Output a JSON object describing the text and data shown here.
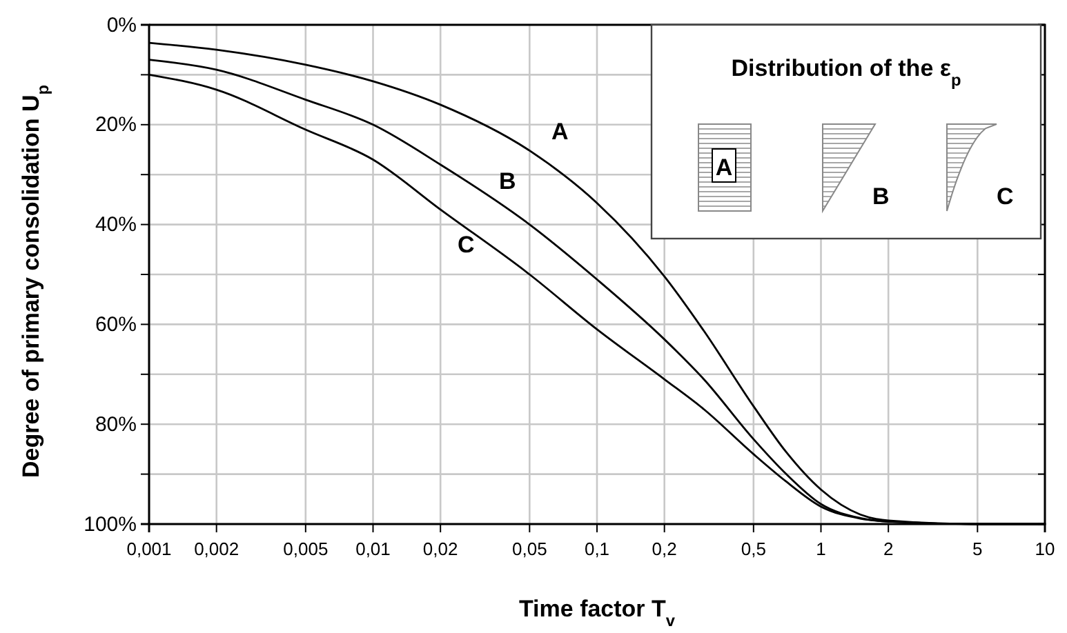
{
  "chart_data": {
    "type": "line",
    "xlabel": "Time factor T$_{v}$",
    "ylabel": "Degree of primary consolidation U$_{p}$",
    "legend_title": "Distribution of the ε$_{p}$",
    "annotations": [
      "A",
      "B",
      "C"
    ],
    "log": "x",
    "grid": true,
    "marker": "none",
    "line_style": "solid",
    "x": [
      0.001,
      0.002,
      0.005,
      0.01,
      0.02,
      0.05,
      0.1,
      0.2,
      0.3,
      0.5,
      0.7,
      1,
      1.5,
      2,
      5,
      10
    ],
    "series": [
      {
        "name": "A",
        "color": "#000000",
        "values": [
          3.6,
          5.0,
          8.0,
          11.3,
          16.0,
          25.2,
          35.7,
          50.4,
          61.3,
          76.4,
          85.6,
          93.1,
          98.1,
          99.3,
          100,
          100
        ]
      },
      {
        "name": "B",
        "color": "#000000",
        "values": [
          7,
          9,
          15,
          20,
          28,
          40,
          51,
          63,
          71,
          83,
          90,
          96,
          98.8,
          99.5,
          100,
          100
        ]
      },
      {
        "name": "C",
        "color": "#000000",
        "values": [
          10,
          13,
          21,
          27,
          37,
          50,
          61,
          71,
          77,
          86,
          91.5,
          96.5,
          98.9,
          99.5,
          100,
          100
        ]
      }
    ],
    "xlim": [
      0.001,
      10
    ],
    "xticks": [
      {
        "value": 0.001,
        "label": "0,001"
      },
      {
        "value": 0.002,
        "label": "0,002"
      },
      {
        "value": 0.005,
        "label": "0,005"
      },
      {
        "value": 0.01,
        "label": "0,01"
      },
      {
        "value": 0.02,
        "label": "0,02"
      },
      {
        "value": 0.05,
        "label": "0,05"
      },
      {
        "value": 0.1,
        "label": "0,1"
      },
      {
        "value": 0.2,
        "label": "0,2"
      },
      {
        "value": 0.5,
        "label": "0,5"
      },
      {
        "value": 1,
        "label": "1"
      },
      {
        "value": 2,
        "label": "2"
      },
      {
        "value": 5,
        "label": "5"
      },
      {
        "value": 10,
        "label": "10"
      }
    ],
    "ylim": [
      100,
      0
    ],
    "yticks": [
      {
        "value": 0,
        "label": "0%"
      },
      {
        "value": 10,
        "label": null
      },
      {
        "value": 20,
        "label": "20%"
      },
      {
        "value": 30,
        "label": null
      },
      {
        "value": 40,
        "label": "40%"
      },
      {
        "value": 50,
        "label": null
      },
      {
        "value": 60,
        "label": "60%"
      },
      {
        "value": 70,
        "label": null
      },
      {
        "value": 80,
        "label": "80%"
      },
      {
        "value": 90,
        "label": null
      },
      {
        "value": 100,
        "label": "100%"
      }
    ]
  }
}
